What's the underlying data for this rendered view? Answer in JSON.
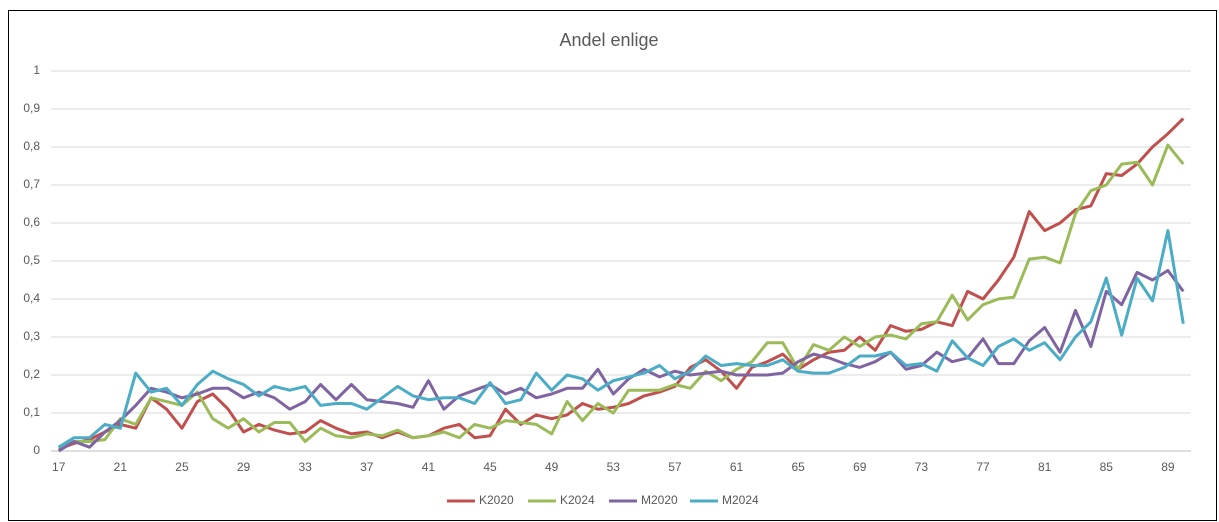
{
  "chart_data": {
    "type": "line",
    "title": "Andel enlige",
    "x": [
      17,
      18,
      19,
      20,
      21,
      22,
      23,
      24,
      25,
      26,
      27,
      28,
      29,
      30,
      31,
      32,
      33,
      34,
      35,
      36,
      37,
      38,
      39,
      40,
      41,
      42,
      43,
      44,
      45,
      46,
      47,
      48,
      49,
      50,
      51,
      52,
      53,
      54,
      55,
      56,
      57,
      58,
      59,
      60,
      61,
      62,
      63,
      64,
      65,
      66,
      67,
      68,
      69,
      70,
      71,
      72,
      73,
      74,
      75,
      76,
      77,
      78,
      79,
      80,
      81,
      82,
      83,
      84,
      85,
      86,
      87,
      88,
      89,
      90
    ],
    "xlim": [
      16.5,
      90.5
    ],
    "xticks": [
      17,
      21,
      25,
      29,
      33,
      37,
      41,
      45,
      49,
      53,
      57,
      61,
      65,
      69,
      73,
      77,
      81,
      85,
      89
    ],
    "ylim": [
      0,
      1
    ],
    "yticks": [
      0,
      {
        "value": 0.1,
        "label": "0,1"
      },
      {
        "value": 0.2,
        "label": "0,2"
      },
      {
        "value": 0.3,
        "label": "0,3"
      },
      {
        "value": 0.4,
        "label": "0,4"
      },
      {
        "value": 0.5,
        "label": "0,5"
      },
      {
        "value": 0.6,
        "label": "0,6"
      },
      {
        "value": 0.7,
        "label": "0,7"
      },
      {
        "value": 0.8,
        "label": "0,8"
      },
      {
        "value": 0.9,
        "label": "0,9"
      },
      1
    ],
    "grid": true,
    "legend": "bottom",
    "series": [
      {
        "name": "K2020",
        "color": "#c0504d",
        "values": [
          0.005,
          0.02,
          0.03,
          0.05,
          0.07,
          0.06,
          0.14,
          0.11,
          0.06,
          0.13,
          0.15,
          0.11,
          0.05,
          0.07,
          0.055,
          0.045,
          0.05,
          0.08,
          0.06,
          0.045,
          0.05,
          0.035,
          0.05,
          0.035,
          0.04,
          0.06,
          0.07,
          0.035,
          0.04,
          0.11,
          0.07,
          0.095,
          0.085,
          0.095,
          0.125,
          0.11,
          0.115,
          0.125,
          0.145,
          0.155,
          0.17,
          0.22,
          0.24,
          0.21,
          0.165,
          0.22,
          0.235,
          0.255,
          0.215,
          0.24,
          0.26,
          0.265,
          0.3,
          0.265,
          0.33,
          0.315,
          0.32,
          0.34,
          0.33,
          0.42,
          0.4,
          0.45,
          0.51,
          0.63,
          0.58,
          0.6,
          0.635,
          0.645,
          0.73,
          0.725,
          0.755,
          0.8,
          0.835,
          0.875
        ]
      },
      {
        "name": "K2024",
        "color": "#9bbb59",
        "values": [
          0.01,
          0.025,
          0.025,
          0.03,
          0.085,
          0.07,
          0.14,
          0.13,
          0.12,
          0.155,
          0.085,
          0.06,
          0.085,
          0.05,
          0.075,
          0.075,
          0.025,
          0.06,
          0.04,
          0.035,
          0.045,
          0.04,
          0.055,
          0.035,
          0.04,
          0.05,
          0.035,
          0.07,
          0.06,
          0.08,
          0.075,
          0.07,
          0.045,
          0.13,
          0.08,
          0.125,
          0.1,
          0.16,
          0.16,
          0.16,
          0.175,
          0.165,
          0.21,
          0.185,
          0.215,
          0.235,
          0.285,
          0.285,
          0.215,
          0.28,
          0.265,
          0.3,
          0.275,
          0.3,
          0.305,
          0.295,
          0.335,
          0.34,
          0.41,
          0.345,
          0.385,
          0.4,
          0.405,
          0.505,
          0.51,
          0.495,
          0.625,
          0.685,
          0.7,
          0.755,
          0.76,
          0.7,
          0.805,
          0.755
        ]
      },
      {
        "name": "M2020",
        "color": "#8064a2",
        "values": [
          0.0,
          0.025,
          0.01,
          0.05,
          0.08,
          0.12,
          0.165,
          0.155,
          0.14,
          0.15,
          0.165,
          0.165,
          0.14,
          0.155,
          0.14,
          0.11,
          0.13,
          0.175,
          0.135,
          0.175,
          0.135,
          0.13,
          0.125,
          0.115,
          0.185,
          0.11,
          0.145,
          0.16,
          0.175,
          0.15,
          0.165,
          0.14,
          0.15,
          0.165,
          0.165,
          0.215,
          0.15,
          0.19,
          0.215,
          0.195,
          0.21,
          0.2,
          0.205,
          0.21,
          0.2,
          0.2,
          0.2,
          0.205,
          0.235,
          0.255,
          0.245,
          0.23,
          0.22,
          0.235,
          0.26,
          0.215,
          0.225,
          0.26,
          0.235,
          0.245,
          0.295,
          0.23,
          0.23,
          0.29,
          0.325,
          0.26,
          0.37,
          0.275,
          0.42,
          0.385,
          0.47,
          0.45,
          0.475,
          0.42
        ]
      },
      {
        "name": "M2024",
        "color": "#4bacc6",
        "values": [
          0.01,
          0.035,
          0.035,
          0.07,
          0.06,
          0.205,
          0.155,
          0.165,
          0.12,
          0.175,
          0.21,
          0.19,
          0.175,
          0.145,
          0.17,
          0.16,
          0.17,
          0.12,
          0.125,
          0.125,
          0.11,
          0.14,
          0.17,
          0.145,
          0.135,
          0.14,
          0.14,
          0.125,
          0.18,
          0.125,
          0.135,
          0.205,
          0.16,
          0.2,
          0.19,
          0.16,
          0.185,
          0.195,
          0.205,
          0.225,
          0.19,
          0.21,
          0.25,
          0.225,
          0.23,
          0.225,
          0.225,
          0.24,
          0.21,
          0.205,
          0.205,
          0.22,
          0.25,
          0.25,
          0.26,
          0.225,
          0.23,
          0.21,
          0.29,
          0.245,
          0.225,
          0.275,
          0.295,
          0.265,
          0.285,
          0.24,
          0.3,
          0.34,
          0.455,
          0.305,
          0.455,
          0.395,
          0.58,
          0.335
        ]
      }
    ]
  }
}
